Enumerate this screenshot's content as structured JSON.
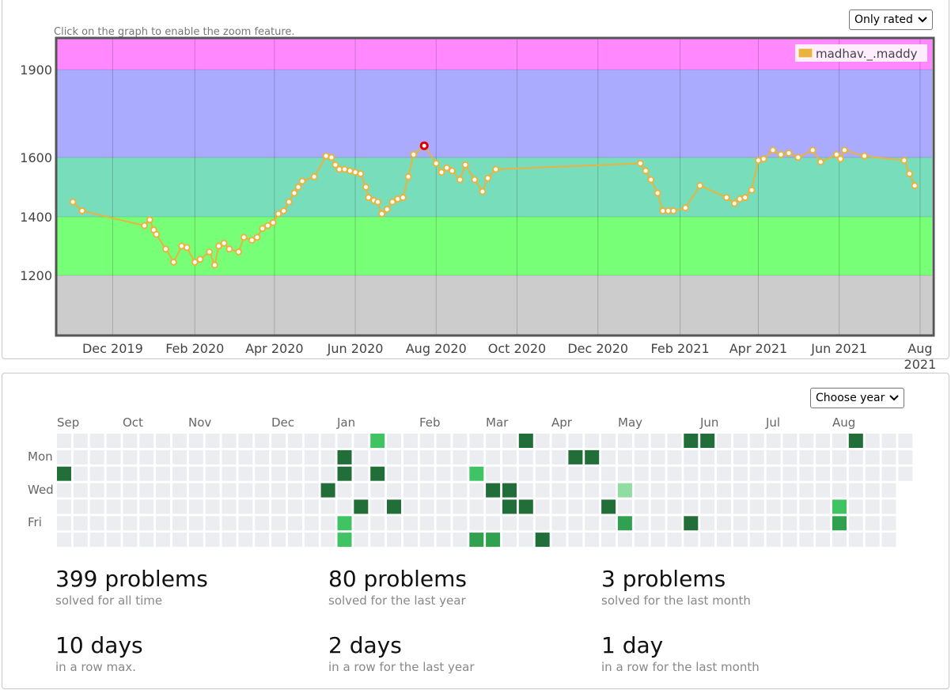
{
  "rating_chart": {
    "hint": "Click on the graph to enable the zoom feature.",
    "filter_label": "Only rated",
    "legend": "madhav._.maddy"
  },
  "chart_data": {
    "type": "line",
    "series": [
      {
        "name": "madhav._.maddy",
        "color": "#e8b43e",
        "points": [
          [
            "2019-11-01",
            1450
          ],
          [
            "2019-11-08",
            1420
          ],
          [
            "2019-12-25",
            1370
          ],
          [
            "2019-12-29",
            1390
          ],
          [
            "2020-01-01",
            1355
          ],
          [
            "2020-01-03",
            1340
          ],
          [
            "2020-01-10",
            1290
          ],
          [
            "2020-01-16",
            1245
          ],
          [
            "2020-01-22",
            1300
          ],
          [
            "2020-01-26",
            1295
          ],
          [
            "2020-02-01",
            1245
          ],
          [
            "2020-02-05",
            1255
          ],
          [
            "2020-02-12",
            1280
          ],
          [
            "2020-02-16",
            1235
          ],
          [
            "2020-02-19",
            1300
          ],
          [
            "2020-02-23",
            1310
          ],
          [
            "2020-02-27",
            1290
          ],
          [
            "2020-03-05",
            1280
          ],
          [
            "2020-03-09",
            1330
          ],
          [
            "2020-03-15",
            1320
          ],
          [
            "2020-03-19",
            1330
          ],
          [
            "2020-03-23",
            1360
          ],
          [
            "2020-03-27",
            1370
          ],
          [
            "2020-03-31",
            1380
          ],
          [
            "2020-04-04",
            1410
          ],
          [
            "2020-04-08",
            1420
          ],
          [
            "2020-04-12",
            1450
          ],
          [
            "2020-04-16",
            1480
          ],
          [
            "2020-04-19",
            1500
          ],
          [
            "2020-04-22",
            1520
          ],
          [
            "2020-05-01",
            1535
          ],
          [
            "2020-05-10",
            1605
          ],
          [
            "2020-05-14",
            1600
          ],
          [
            "2020-05-17",
            1575
          ],
          [
            "2020-05-20",
            1560
          ],
          [
            "2020-05-24",
            1560
          ],
          [
            "2020-05-28",
            1555
          ],
          [
            "2020-06-01",
            1550
          ],
          [
            "2020-06-05",
            1545
          ],
          [
            "2020-06-09",
            1500
          ],
          [
            "2020-06-11",
            1465
          ],
          [
            "2020-06-15",
            1455
          ],
          [
            "2020-06-18",
            1450
          ],
          [
            "2020-06-21",
            1410
          ],
          [
            "2020-06-25",
            1425
          ],
          [
            "2020-06-29",
            1450
          ],
          [
            "2020-07-03",
            1460
          ],
          [
            "2020-07-07",
            1465
          ],
          [
            "2020-07-11",
            1535
          ],
          [
            "2020-07-15",
            1610
          ],
          [
            "2020-07-23",
            1640
          ],
          [
            "2020-08-01",
            1580
          ],
          [
            "2020-08-05",
            1550
          ],
          [
            "2020-08-09",
            1565
          ],
          [
            "2020-08-13",
            1555
          ],
          [
            "2020-08-19",
            1525
          ],
          [
            "2020-08-23",
            1575
          ],
          [
            "2020-08-30",
            1525
          ],
          [
            "2020-09-05",
            1485
          ],
          [
            "2020-09-09",
            1530
          ],
          [
            "2020-09-15",
            1560
          ],
          [
            "2021-01-02",
            1580
          ],
          [
            "2021-01-06",
            1555
          ],
          [
            "2021-01-10",
            1525
          ],
          [
            "2021-01-15",
            1480
          ],
          [
            "2021-01-19",
            1420
          ],
          [
            "2021-01-23",
            1420
          ],
          [
            "2021-01-27",
            1420
          ],
          [
            "2021-02-05",
            1430
          ],
          [
            "2021-02-16",
            1505
          ],
          [
            "2021-03-08",
            1465
          ],
          [
            "2021-03-14",
            1445
          ],
          [
            "2021-03-18",
            1460
          ],
          [
            "2021-03-22",
            1465
          ],
          [
            "2021-03-27",
            1490
          ],
          [
            "2021-04-01",
            1590
          ],
          [
            "2021-04-05",
            1595
          ],
          [
            "2021-04-12",
            1625
          ],
          [
            "2021-04-18",
            1610
          ],
          [
            "2021-04-24",
            1615
          ],
          [
            "2021-05-01",
            1600
          ],
          [
            "2021-05-12",
            1625
          ],
          [
            "2021-05-18",
            1585
          ],
          [
            "2021-05-30",
            1610
          ],
          [
            "2021-06-02",
            1595
          ],
          [
            "2021-06-05",
            1625
          ],
          [
            "2021-06-20",
            1605
          ],
          [
            "2021-07-20",
            1590
          ],
          [
            "2021-07-24",
            1545
          ],
          [
            "2021-07-28",
            1505
          ]
        ],
        "highlight_point": [
          "2020-07-23",
          1640
        ]
      }
    ],
    "ylim": [
      1000,
      1960
    ],
    "y_ticks": [
      1200,
      1400,
      1600,
      1900
    ],
    "x_ticks": [
      "Dec 2019",
      "Feb 2020",
      "Apr 2020",
      "Jun 2020",
      "Aug 2020",
      "Oct 2020",
      "Dec 2020",
      "Feb 2021",
      "Apr 2021",
      "Jun 2021",
      "Aug 2021"
    ],
    "bands": [
      {
        "from": 1000,
        "to": 1200,
        "color": "#cccccc"
      },
      {
        "from": 1200,
        "to": 1400,
        "color": "#77ff77"
      },
      {
        "from": 1400,
        "to": 1600,
        "color": "#77ddbb"
      },
      {
        "from": 1600,
        "to": 1900,
        "color": "#aaaaff"
      },
      {
        "from": 1900,
        "to": 1960,
        "color": "#ff88ff"
      }
    ],
    "grid": true,
    "legend_position": "top-right"
  },
  "activity": {
    "year_select_label": "Choose year",
    "months": [
      "Sep",
      "Oct",
      "Nov",
      "Dec",
      "Jan",
      "Feb",
      "Mar",
      "Apr",
      "May",
      "Jun",
      "Jul",
      "Aug"
    ],
    "days": [
      "Mon",
      "Wed",
      "Fri"
    ],
    "empty_color": "#ebedf0",
    "levels": [
      "#ebedf0",
      "#8fdda0",
      "#40c463",
      "#30a14e",
      "#216e39"
    ],
    "active_cells": [
      [
        0,
        2,
        4
      ],
      [
        16,
        3,
        4
      ],
      [
        17,
        1,
        4
      ],
      [
        17,
        2,
        4
      ],
      [
        17,
        5,
        2
      ],
      [
        17,
        6,
        2
      ],
      [
        18,
        4,
        4
      ],
      [
        19,
        0,
        2
      ],
      [
        19,
        2,
        4
      ],
      [
        20,
        4,
        4
      ],
      [
        25,
        6,
        3
      ],
      [
        25,
        2,
        2
      ],
      [
        26,
        6,
        3
      ],
      [
        26,
        3,
        4
      ],
      [
        27,
        3,
        4
      ],
      [
        27,
        4,
        4
      ],
      [
        28,
        0,
        4
      ],
      [
        28,
        4,
        4
      ],
      [
        29,
        6,
        4
      ],
      [
        31,
        1,
        4
      ],
      [
        32,
        1,
        4
      ],
      [
        33,
        4,
        4
      ],
      [
        34,
        3,
        1
      ],
      [
        34,
        5,
        3
      ],
      [
        38,
        0,
        4
      ],
      [
        38,
        5,
        4
      ],
      [
        39,
        0,
        4
      ],
      [
        47,
        4,
        2
      ],
      [
        47,
        5,
        3
      ],
      [
        48,
        0,
        4
      ]
    ]
  },
  "stats": [
    {
      "big": "399 problems",
      "small": "solved for all time"
    },
    {
      "big": "80 problems",
      "small": "solved for the last year"
    },
    {
      "big": "3 problems",
      "small": "solved for the last month"
    },
    {
      "big": "10 days",
      "small": "in a row max."
    },
    {
      "big": "2 days",
      "small": "in a row for the last year"
    },
    {
      "big": "1 day",
      "small": "in a row for the last month"
    }
  ]
}
